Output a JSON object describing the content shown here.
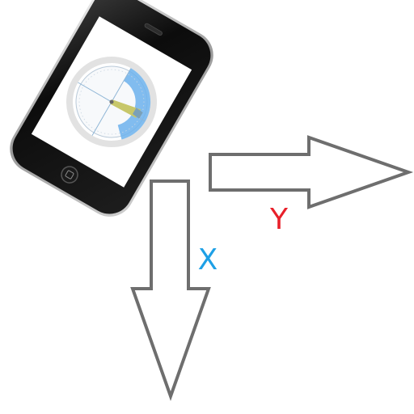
{
  "axes": {
    "x": {
      "label": "X",
      "color": "#1ea0e6"
    },
    "y": {
      "label": "Y",
      "color": "#e8202a"
    }
  },
  "arrows": {
    "stroke_color": "#6e6e6e",
    "fill_color": "#ffffff"
  },
  "phone": {
    "body_color": "#111111",
    "screen_color": "#ffffff",
    "app": {
      "dial_color": "#e2e2e2",
      "highlight_color": "#6cb2ec",
      "needle_color": "#c7c76a"
    }
  }
}
